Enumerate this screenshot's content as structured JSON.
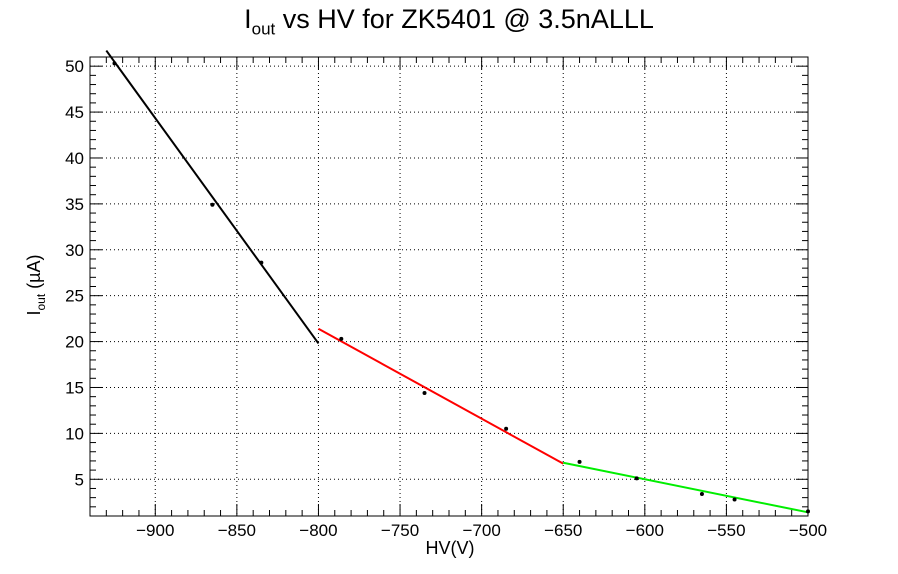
{
  "chart_data": {
    "type": "scatter",
    "title": {
      "main": "I",
      "sub": "out",
      "rest": " vs HV for ZK5401 @ 3.5nALLL"
    },
    "xlabel": "HV(V)",
    "ylabel": {
      "main": "I",
      "sub": "out",
      "rest": " (µA)"
    },
    "xlim": [
      -940,
      -500
    ],
    "ylim": [
      1,
      51
    ],
    "xticks": [
      -900,
      -850,
      -800,
      -750,
      -700,
      -650,
      -600,
      -550,
      -500
    ],
    "xtick_labels": [
      "−900",
      "−850",
      "−800",
      "−750",
      "−700",
      "−650",
      "−600",
      "−550",
      "−500"
    ],
    "yticks": [
      5,
      10,
      15,
      20,
      25,
      30,
      35,
      40,
      45,
      50
    ],
    "ytick_labels": [
      "5",
      "10",
      "15",
      "20",
      "25",
      "30",
      "35",
      "40",
      "45",
      "50"
    ],
    "grid": true,
    "points": {
      "x": [
        -925,
        -865,
        -835,
        -786,
        -735,
        -685,
        -640,
        -605,
        -565,
        -545,
        -500
      ],
      "y": [
        50.3,
        34.9,
        28.6,
        20.3,
        14.4,
        10.5,
        6.9,
        5.1,
        3.4,
        2.8,
        1.5
      ]
    },
    "fits": [
      {
        "color": "#000000",
        "x": [
          -930,
          -800
        ],
        "y": [
          51.7,
          19.8
        ]
      },
      {
        "color": "#ff0000",
        "x": [
          -800,
          -650
        ],
        "y": [
          21.4,
          6.7
        ]
      },
      {
        "color": "#00ee00",
        "x": [
          -650,
          -500
        ],
        "y": [
          6.8,
          1.4
        ]
      }
    ]
  }
}
